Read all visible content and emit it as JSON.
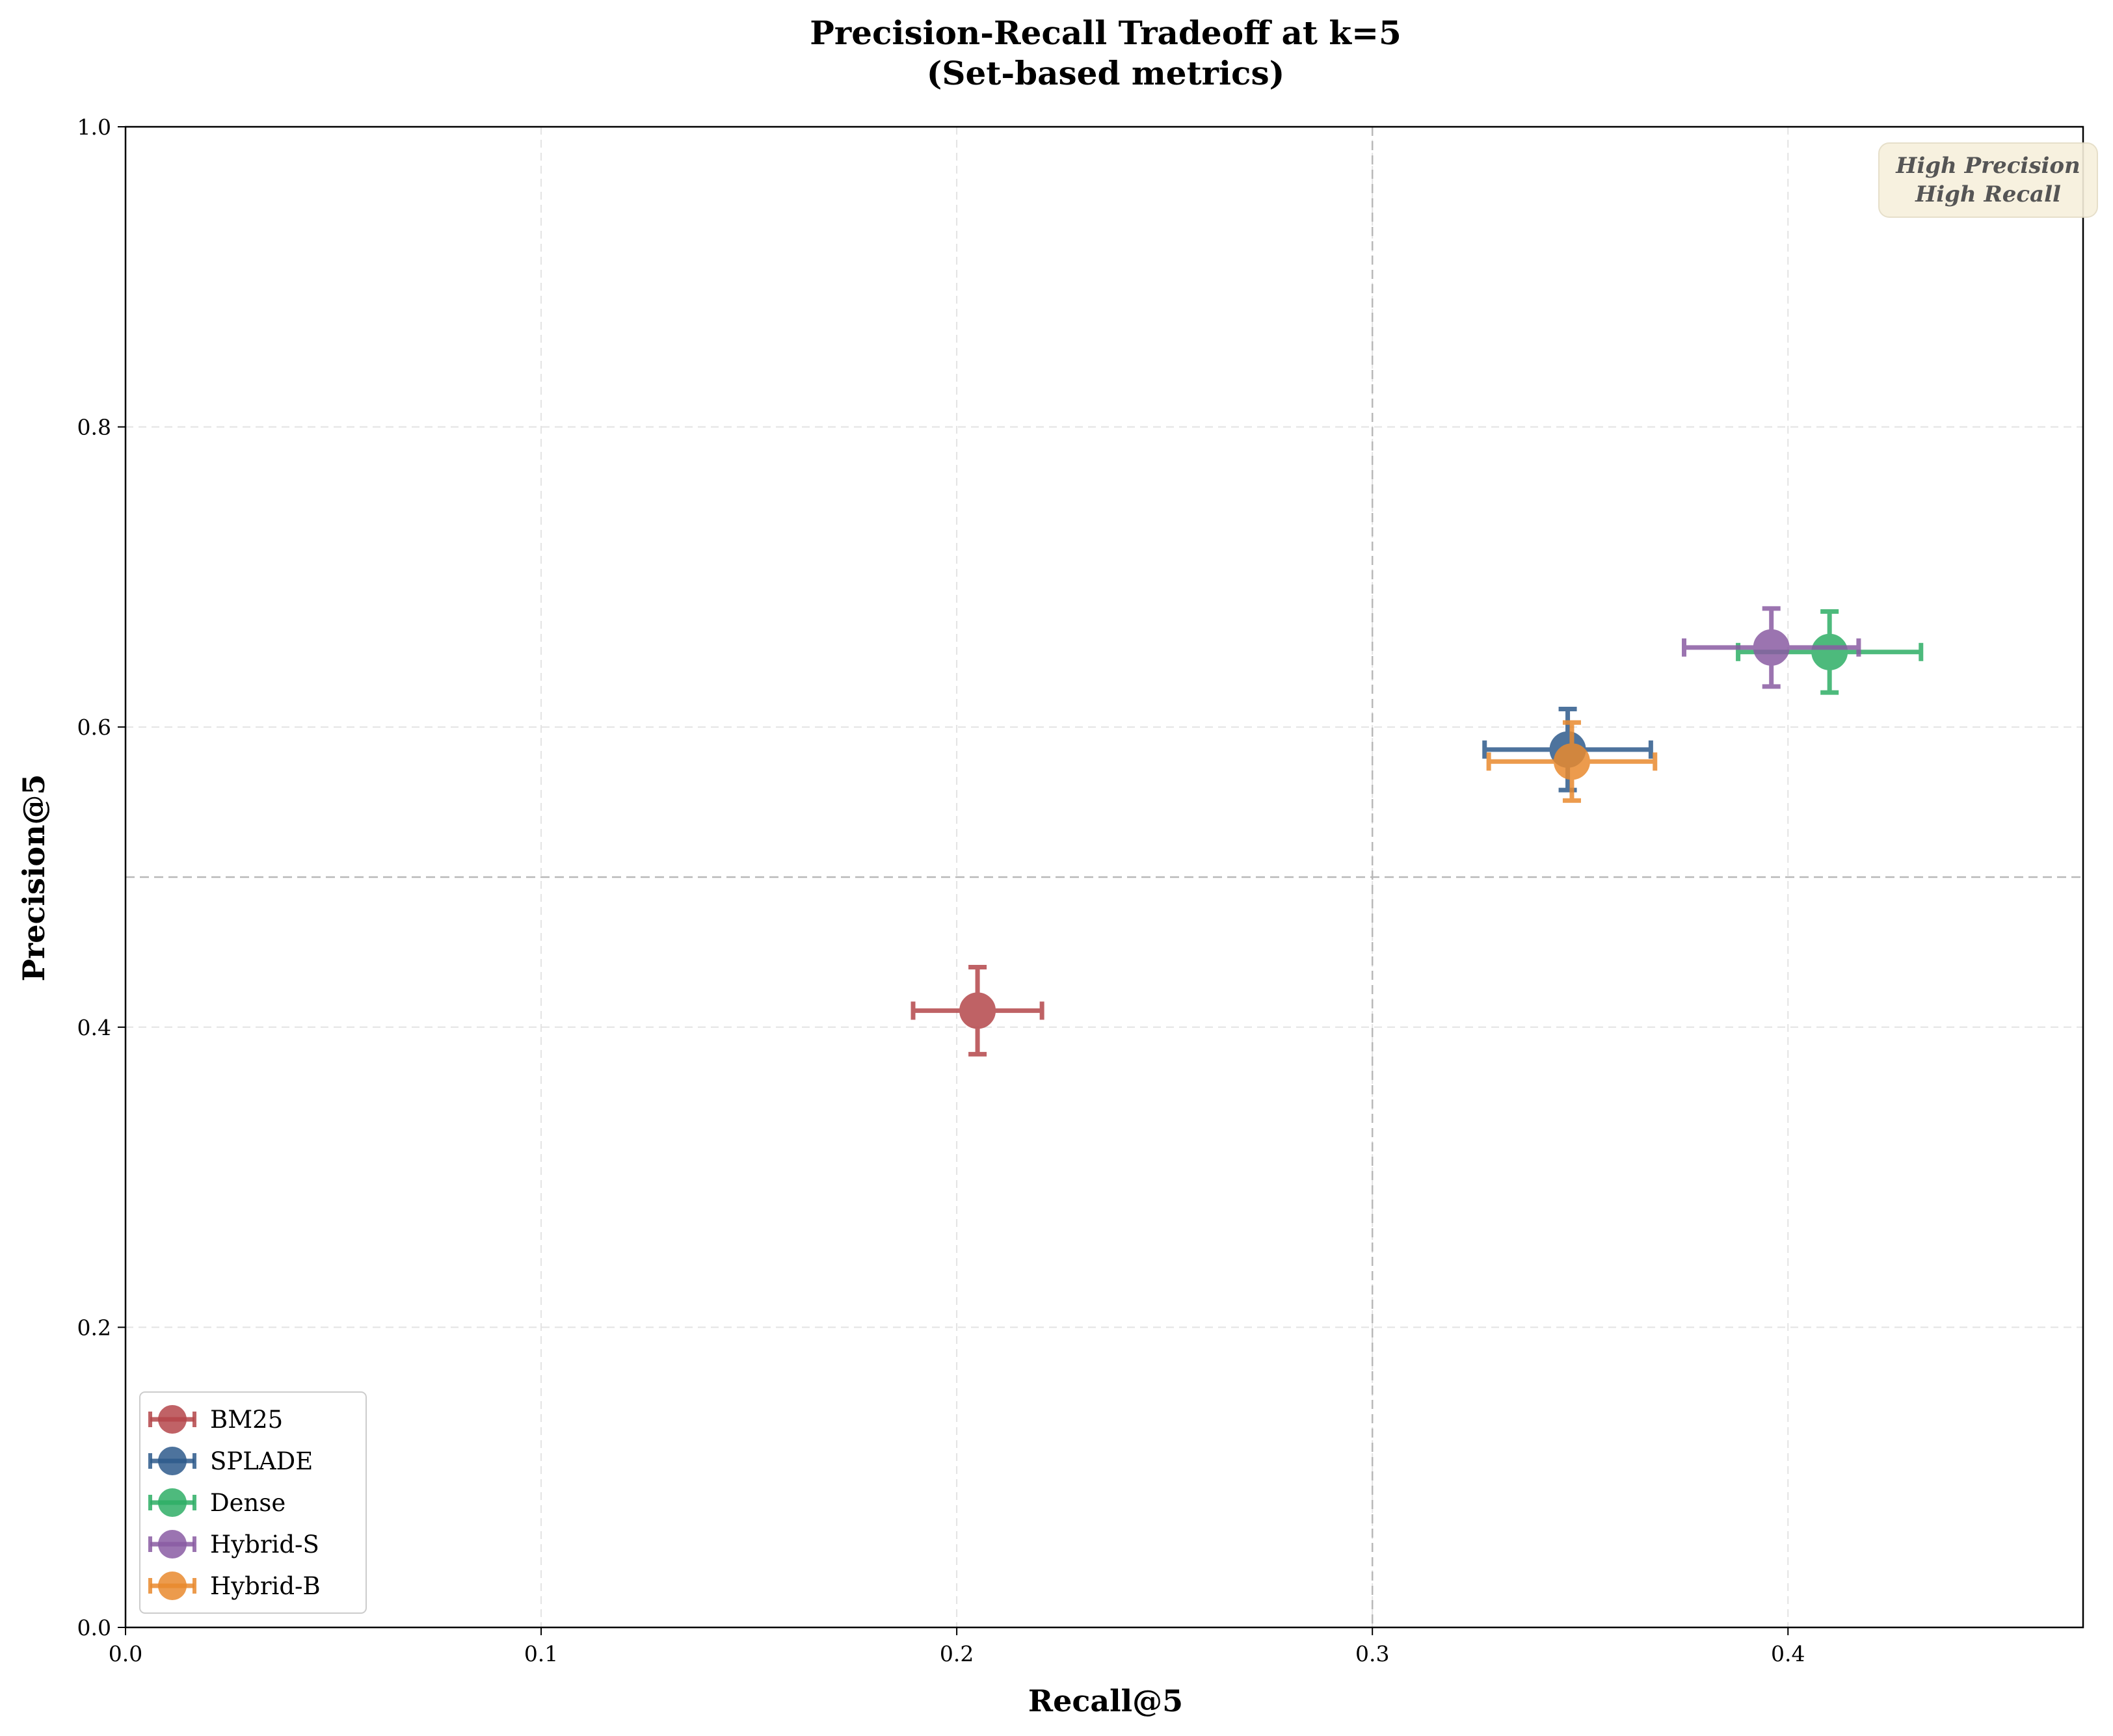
{
  "chart_data": {
    "type": "scatter",
    "title": "Precision-Recall Tradeoff at k=5",
    "subtitle": "(Set-based metrics)",
    "xlabel": "Recall@5",
    "ylabel": "Precision@5",
    "xlim": [
      0.0,
      0.471
    ],
    "ylim": [
      0.0,
      1.0
    ],
    "xticks": [
      0.0,
      0.1,
      0.2,
      0.3,
      0.4
    ],
    "xtick_labels": [
      "0.0",
      "0.1",
      "0.2",
      "0.3",
      "0.4"
    ],
    "yticks": [
      0.0,
      0.2,
      0.4,
      0.6,
      0.8,
      1.0
    ],
    "ytick_labels": [
      "0.0",
      "0.2",
      "0.4",
      "0.6",
      "0.8",
      "1.0"
    ],
    "grid": true,
    "reference_lines": {
      "x": 0.3,
      "y": 0.5
    },
    "legend_position": "lower left",
    "annotation": {
      "lines": [
        "High Precision",
        "High Recall"
      ],
      "position": "top-right"
    },
    "series": [
      {
        "name": "BM25",
        "color": "#b5474b",
        "x": 0.205,
        "y": 0.411,
        "xerr": 0.0155,
        "yerr": 0.029
      },
      {
        "name": "SPLADE",
        "color": "#2e5b8c",
        "x": 0.347,
        "y": 0.585,
        "xerr": 0.02,
        "yerr": 0.027
      },
      {
        "name": "Dense",
        "color": "#2fae66",
        "x": 0.41,
        "y": 0.65,
        "xerr": 0.022,
        "yerr": 0.027
      },
      {
        "name": "Hybrid-S",
        "color": "#8a5ca3",
        "x": 0.396,
        "y": 0.653,
        "xerr": 0.021,
        "yerr": 0.026
      },
      {
        "name": "Hybrid-B",
        "color": "#e98a2e",
        "x": 0.348,
        "y": 0.577,
        "xerr": 0.02,
        "yerr": 0.026
      }
    ]
  }
}
